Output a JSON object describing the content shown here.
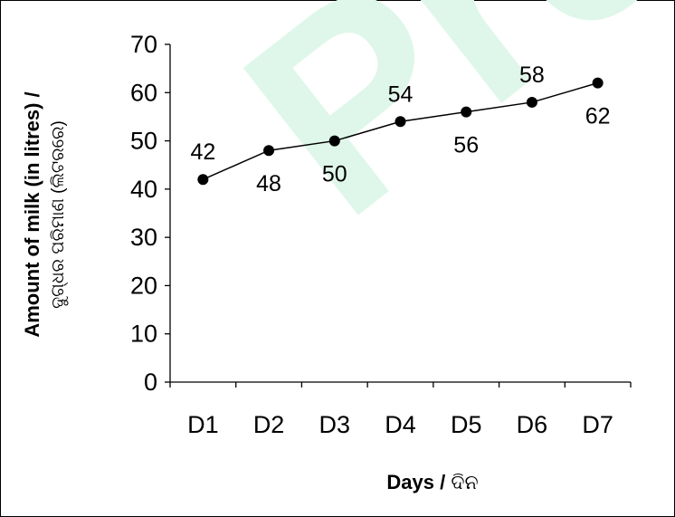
{
  "chart_data": {
    "type": "line",
    "categories": [
      "D1",
      "D2",
      "D3",
      "D4",
      "D5",
      "D6",
      "D7"
    ],
    "values": [
      42,
      48,
      50,
      54,
      56,
      58,
      62
    ],
    "ylim": [
      0,
      70
    ],
    "yticks": [
      0,
      10,
      20,
      30,
      40,
      50,
      60,
      70
    ],
    "ytick_labels": [
      "0",
      "10",
      "20",
      "30",
      "40",
      "50",
      "60",
      "70"
    ],
    "data_labels": [
      "42",
      "48",
      "50",
      "54",
      "56",
      "58",
      "62"
    ],
    "ylabel_line1": "Amount of milk (in litres) /",
    "ylabel_line2": "ଦୁଗ୍ଧର ପରିମାଣ (ଲିଟରରେ)",
    "xlabel_en": "Days",
    "xlabel_sep": " / ",
    "xlabel_native": "ଦିନ",
    "grid": false,
    "legend": "none",
    "colors": {
      "line": "#000000",
      "marker": "#000000",
      "watermark": "#dff7ea"
    }
  },
  "watermark": {
    "text": "Pre"
  }
}
